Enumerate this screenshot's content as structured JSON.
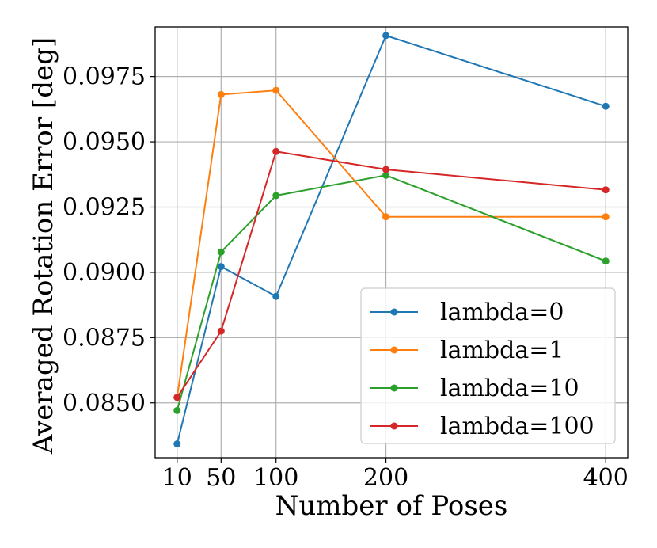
{
  "chart_data": {
    "type": "line",
    "title": "",
    "xlabel": "Number of Poses",
    "ylabel": "Averaged Rotation Error [deg]",
    "x": [
      10,
      50,
      100,
      200,
      400
    ],
    "x_tick_labels": [
      "10",
      "50",
      "100",
      "200",
      "400"
    ],
    "y_ticks": [
      0.085,
      0.0875,
      0.09,
      0.0925,
      0.095,
      0.0975
    ],
    "y_tick_labels": [
      "0.0850",
      "0.0875",
      "0.0900",
      "0.0925",
      "0.0950",
      "0.0975"
    ],
    "xlim": [
      -10,
      420
    ],
    "ylim": [
      0.0829,
      0.0994
    ],
    "grid": true,
    "legend_position": "lower-right",
    "series": [
      {
        "name": "lambda=0",
        "color": "#1f77b4",
        "values": [
          0.08343,
          0.09022,
          0.08908,
          0.09907,
          0.09636
        ]
      },
      {
        "name": "lambda=1",
        "color": "#ff7f0e",
        "values": [
          0.08521,
          0.09681,
          0.09697,
          0.09213,
          0.09213
        ]
      },
      {
        "name": "lambda=10",
        "color": "#2ca02c",
        "values": [
          0.08471,
          0.09078,
          0.09294,
          0.09372,
          0.09043
        ]
      },
      {
        "name": "lambda=100",
        "color": "#d62728",
        "values": [
          0.08521,
          0.08775,
          0.09463,
          0.09394,
          0.09316
        ]
      }
    ]
  }
}
